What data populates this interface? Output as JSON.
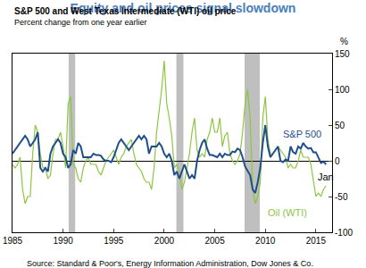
{
  "chart_data": {
    "type": "line",
    "title": "Equity and oil prices signal slowdown",
    "subtitle": "S&P 500 and West Texas Intermediate (WTI) oil price",
    "y_label_text": "Percent change from one year earlier",
    "y_unit": "%",
    "source": "Source: Standard & Poor's, Energy Information Administration, Dow Jones & Co.",
    "x": [
      1985,
      1985.25,
      1985.5,
      1985.75,
      1986,
      1986.25,
      1986.5,
      1986.75,
      1987,
      1987.25,
      1987.5,
      1987.75,
      1988,
      1988.25,
      1988.5,
      1988.75,
      1989,
      1989.25,
      1989.5,
      1989.75,
      1990,
      1990.25,
      1990.5,
      1990.75,
      1991,
      1991.25,
      1991.5,
      1991.75,
      1992,
      1992.25,
      1992.5,
      1992.75,
      1993,
      1993.25,
      1993.5,
      1993.75,
      1994,
      1994.25,
      1994.5,
      1994.75,
      1995,
      1995.25,
      1995.5,
      1995.75,
      1996,
      1996.25,
      1996.5,
      1996.75,
      1997,
      1997.25,
      1997.5,
      1997.75,
      1998,
      1998.25,
      1998.5,
      1998.75,
      1999,
      1999.25,
      1999.5,
      1999.75,
      2000,
      2000.25,
      2000.5,
      2000.75,
      2001,
      2001.25,
      2001.5,
      2001.75,
      2002,
      2002.25,
      2002.5,
      2002.75,
      2003,
      2003.25,
      2003.5,
      2003.75,
      2004,
      2004.25,
      2004.5,
      2004.75,
      2005,
      2005.25,
      2005.5,
      2005.75,
      2006,
      2006.25,
      2006.5,
      2006.75,
      2007,
      2007.25,
      2007.5,
      2007.75,
      2008,
      2008.25,
      2008.5,
      2008.75,
      2009,
      2009.25,
      2009.5,
      2009.75,
      2010,
      2010.25,
      2010.5,
      2010.75,
      2011,
      2011.25,
      2011.5,
      2011.75,
      2012,
      2012.25,
      2012.5,
      2012.75,
      2013,
      2013.25,
      2013.5,
      2013.75,
      2014,
      2014.25,
      2014.5,
      2014.75,
      2015,
      2015.25,
      2015.5,
      2015.75,
      2016
    ],
    "series": [
      {
        "name": "S&P 500",
        "color": "#1f4e8c",
        "line_style": "solid",
        "label_x": 2013.6,
        "label_y": 38,
        "values": [
          10,
          15,
          20,
          25,
          30,
          35,
          30,
          20,
          25,
          30,
          40,
          -10,
          -15,
          -10,
          -15,
          10,
          20,
          25,
          30,
          25,
          10,
          5,
          -10,
          -5,
          15,
          10,
          25,
          20,
          5,
          5,
          5,
          5,
          10,
          8,
          8,
          7,
          2,
          0,
          0,
          -2,
          5,
          15,
          25,
          30,
          25,
          20,
          15,
          20,
          25,
          30,
          35,
          30,
          35,
          30,
          10,
          20,
          20,
          20,
          25,
          20,
          10,
          5,
          10,
          0,
          -20,
          -15,
          -25,
          -15,
          -5,
          -15,
          -25,
          -20,
          -25,
          0,
          15,
          25,
          30,
          17,
          8,
          8,
          6,
          5,
          10,
          5,
          10,
          8,
          8,
          13,
          12,
          17,
          15,
          5,
          -8,
          -15,
          -20,
          -40,
          -45,
          -30,
          -10,
          25,
          50,
          20,
          5,
          10,
          15,
          20,
          0,
          -2,
          2,
          0,
          20,
          12,
          10,
          20,
          17,
          25,
          20,
          17,
          18,
          12,
          12,
          5,
          -3,
          -1,
          -5
        ]
      },
      {
        "name": "Oil (WTI)",
        "color": "#8cc63f",
        "line_style": "solid",
        "label_x": 2012.2,
        "label_y": -72,
        "values": [
          -5,
          -10,
          -5,
          5,
          -40,
          -60,
          -50,
          -50,
          10,
          50,
          40,
          10,
          -10,
          -10,
          -25,
          -20,
          10,
          30,
          30,
          40,
          20,
          -10,
          80,
          90,
          -5,
          -10,
          -25,
          -30,
          -10,
          0,
          5,
          -5,
          -5,
          -5,
          -15,
          -20,
          -10,
          0,
          5,
          10,
          15,
          5,
          -5,
          5,
          10,
          20,
          25,
          30,
          10,
          -5,
          -10,
          -15,
          -25,
          -30,
          -30,
          -40,
          -10,
          40,
          70,
          100,
          140,
          80,
          60,
          35,
          -10,
          -5,
          -15,
          -40,
          -30,
          -10,
          10,
          40,
          60,
          15,
          5,
          10,
          5,
          30,
          40,
          60,
          40,
          40,
          60,
          20,
          35,
          40,
          10,
          0,
          -5,
          0,
          10,
          40,
          80,
          100,
          60,
          -40,
          -60,
          -50,
          -30,
          60,
          90,
          30,
          10,
          10,
          15,
          20,
          15,
          10,
          5,
          -10,
          -5,
          -10,
          -10,
          0,
          15,
          5,
          5,
          5,
          -5,
          -30,
          -50,
          -45,
          -50,
          -40,
          -35
        ]
      }
    ],
    "shaded_periods": [
      [
        1990.55,
        1991.2
      ],
      [
        2001.2,
        2001.9
      ],
      [
        2007.95,
        2009.45
      ]
    ],
    "annotations": [
      {
        "text": "Jan",
        "x": 2016,
        "y": -12
      }
    ],
    "xlim": [
      1985,
      2016.6
    ],
    "xticks": [
      1985,
      1990,
      1995,
      2000,
      2005,
      2010,
      2015
    ],
    "ylim": [
      -100,
      150
    ],
    "yticks": [
      -100,
      -50,
      0,
      50,
      100,
      150
    ],
    "grid": false
  }
}
